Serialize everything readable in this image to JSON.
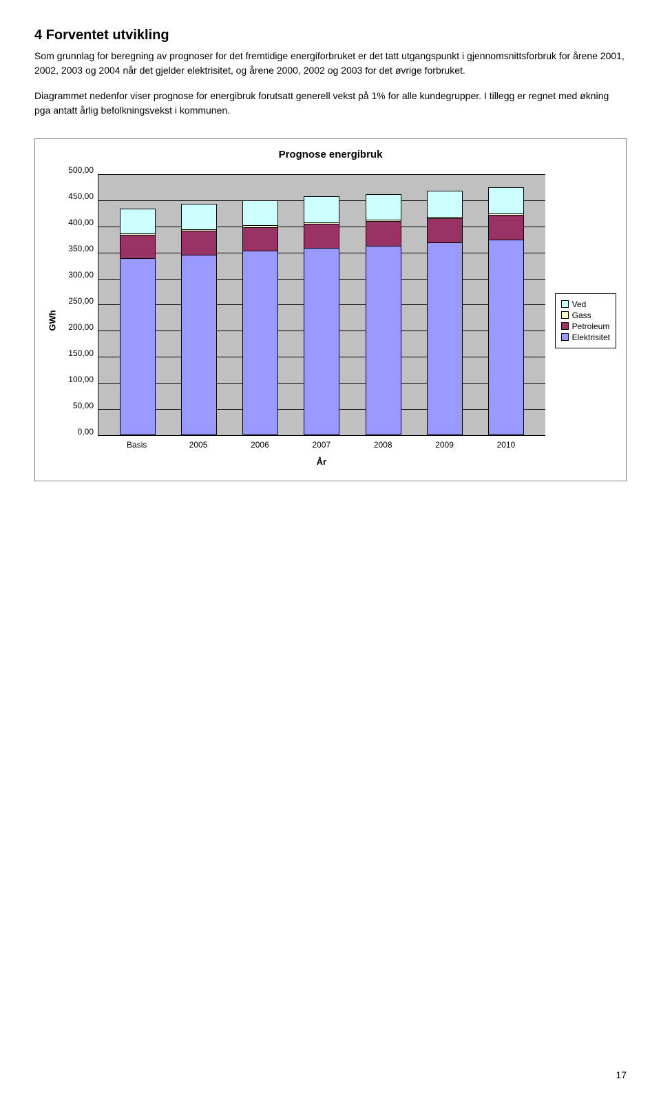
{
  "heading": "4  Forventet utvikling",
  "para1": "Som grunnlag for beregning av prognoser for det fremtidige energiforbruket er det tatt utgangspunkt i gjennomsnittsforbruk for årene 2001, 2002, 2003 og 2004 når det gjelder elektrisitet, og årene 2000, 2002 og 2003 for det øvrige forbruket.",
  "para2": "Diagrammet nedenfor viser prognose for energibruk forutsatt generell vekst på 1% for alle kundegrupper. I tillegg er regnet med økning pga antatt årlig befolkningsvekst i kommunen.",
  "chart": {
    "title": "Prognose energibruk",
    "ylabel": "GWh",
    "xlabel": "År",
    "ymax": 500,
    "yticks": [
      "500,00",
      "450,00",
      "400,00",
      "350,00",
      "300,00",
      "250,00",
      "200,00",
      "150,00",
      "100,00",
      "50,00",
      "0,00"
    ],
    "categories": [
      "Basis",
      "2005",
      "2006",
      "2007",
      "2008",
      "2009",
      "2010"
    ],
    "legend": [
      {
        "label": "Ved",
        "color": "#ccffff"
      },
      {
        "label": "Gass",
        "color": "#ffffcc"
      },
      {
        "label": "Petroleum",
        "color": "#993366"
      },
      {
        "label": "Elektrisitet",
        "color": "#9999ff"
      }
    ],
    "series_order": [
      "Elektrisitet",
      "Petroleum",
      "Gass",
      "Ved"
    ],
    "colors": {
      "Elektrisitet": "#9999ff",
      "Petroleum": "#993366",
      "Gass": "#ffffcc",
      "Ved": "#ccffff"
    },
    "data": [
      {
        "Elektrisitet": 338,
        "Petroleum": 45,
        "Gass": 3,
        "Ved": 47
      },
      {
        "Elektrisitet": 345,
        "Petroleum": 46,
        "Gass": 3,
        "Ved": 48
      },
      {
        "Elektrisitet": 352,
        "Petroleum": 46,
        "Gass": 3,
        "Ved": 48
      },
      {
        "Elektrisitet": 358,
        "Petroleum": 46,
        "Gass": 3,
        "Ved": 49
      },
      {
        "Elektrisitet": 362,
        "Petroleum": 47,
        "Gass": 3,
        "Ved": 49
      },
      {
        "Elektrisitet": 368,
        "Petroleum": 46,
        "Gass": 3,
        "Ved": 50
      },
      {
        "Elektrisitet": 374,
        "Petroleum": 47,
        "Gass": 3,
        "Ved": 50
      }
    ],
    "plot_bg": "#c0c0c0",
    "grid_color": "#000000"
  },
  "page_number": "17"
}
